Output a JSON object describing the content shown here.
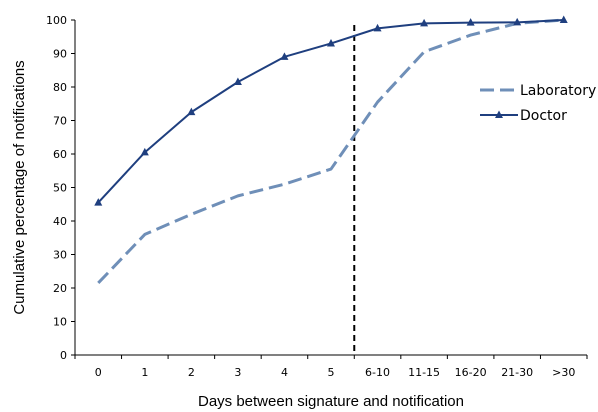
{
  "chart_data": {
    "type": "line",
    "categories": [
      "0",
      "1",
      "2",
      "3",
      "4",
      "5",
      "6-10",
      "11-15",
      "16-20",
      "21-30",
      ">30"
    ],
    "xlabel": "Days between signature and notification",
    "ylabel": "Cumulative percentage of notifications",
    "ylim": [
      0,
      100
    ],
    "yticks": [
      0,
      10,
      20,
      30,
      40,
      50,
      60,
      70,
      80,
      90,
      100
    ],
    "grid": false,
    "legend_position": "right",
    "reference_line": {
      "style": "dashed",
      "position": "between 5 and 6-10",
      "color": "#000000"
    },
    "series": [
      {
        "name": "Laboratory",
        "style": "dashed",
        "marker": "none",
        "color": "#6f8fb8",
        "values": [
          21.5,
          36,
          42,
          47.5,
          51,
          55.5,
          75.5,
          90.5,
          95.5,
          99,
          100
        ]
      },
      {
        "name": "Doctor",
        "style": "solid",
        "marker": "triangle",
        "color": "#1f3f7f",
        "values": [
          45.5,
          60.5,
          72.5,
          81.5,
          89,
          93,
          97.5,
          99,
          99.2,
          99.3,
          100
        ]
      }
    ]
  }
}
